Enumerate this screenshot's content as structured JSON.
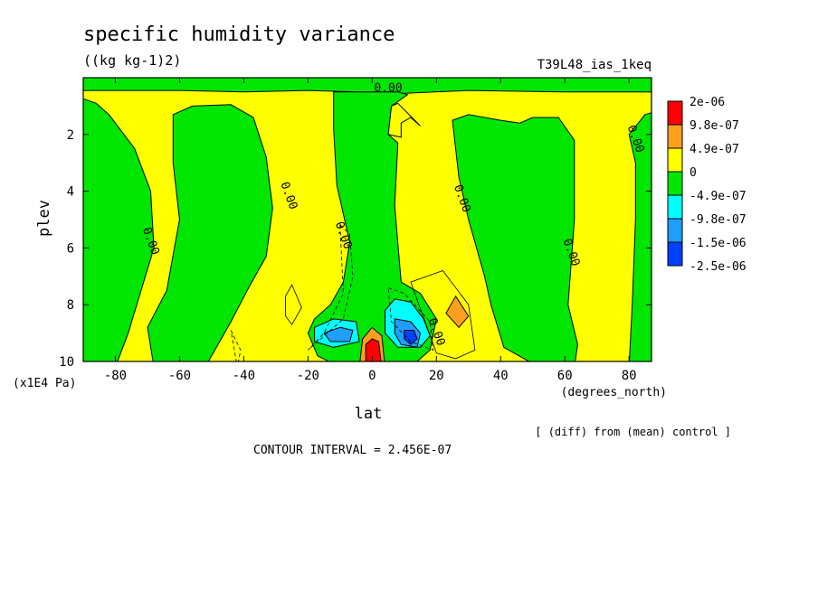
{
  "chart_data": {
    "type": "heatmap",
    "title": "specific humidity variance",
    "units": "((kg kg-1)2)",
    "run_label": "T39L48_ias_1keq",
    "xlabel": "lat",
    "x_units": "(degrees_north)",
    "ylabel": "plev",
    "y_units": "(x1E4 Pa)",
    "note": "[ (diff) from (mean) control ]",
    "contour_interval": "CONTOUR INTERVAL = 2.456E-07",
    "xlim": [
      -90,
      87
    ],
    "ylim": [
      0,
      10
    ],
    "y_reversed": true,
    "x_ticks": [
      -80,
      -60,
      -40,
      -20,
      0,
      20,
      40,
      60,
      80
    ],
    "y_ticks": [
      2,
      4,
      6,
      8,
      10
    ],
    "contour_labels": [
      {
        "x": 5,
        "y": 0.5,
        "text": "0.00"
      },
      {
        "x": -70,
        "y": 5.8,
        "text": "0.00"
      },
      {
        "x": -27,
        "y": 4.2,
        "text": "0.00"
      },
      {
        "x": -10,
        "y": 5.6,
        "text": "0.00"
      },
      {
        "x": 27,
        "y": 4.3,
        "text": "0.00"
      },
      {
        "x": 61,
        "y": 6.2,
        "text": "0.00"
      },
      {
        "x": 81,
        "y": 2.2,
        "text": "0.00"
      },
      {
        "x": 19,
        "y": 9.0,
        "text": "0.00"
      }
    ],
    "legend": {
      "position": "right",
      "labels": [
        "2e-06",
        "9.8e-07",
        "4.9e-07",
        "0",
        "-4.9e-07",
        "-9.8e-07",
        "-1.5e-06",
        "-2.5e-06"
      ],
      "colors": [
        "#ff0000",
        "#ff9f1f",
        "#ffff00",
        "#00e600",
        "#00ffff",
        "#1e9fff",
        "#0040ff"
      ]
    },
    "color_key": {
      "red": "#ff0000",
      "orange": "#ff9f1f",
      "yellow": "#ffff00",
      "green": "#00e600",
      "cyan": "#00ffff",
      "lightblue": "#1e9fff",
      "blue": "#0040ff"
    },
    "regions": [
      {
        "band": "yellow",
        "area": "background / positive small anomalies"
      },
      {
        "band": "green",
        "area": "southern high latitudes -90..-70, plev 0.5..10"
      },
      {
        "band": "green",
        "area": "southern midlatitude column -62..-35, plev 1.2..10"
      },
      {
        "band": "green",
        "area": "tropical column -12..10, plev 0.5..7"
      },
      {
        "band": "green",
        "area": "northern column 25..65, plev 1.3..10"
      },
      {
        "band": "green",
        "area": "northern polar column 80..87"
      },
      {
        "band": "cyan",
        "area": "-18..-5, plev 8.7..9.5"
      },
      {
        "band": "cyan",
        "area": "5..18, plev 7.7..9.4"
      },
      {
        "band": "lightblue",
        "area": "8..16, plev 8.5..9.6"
      },
      {
        "band": "blue",
        "area": "10..14, plev 8.9..9.3"
      },
      {
        "band": "orange",
        "area": "23..30, plev 7.7..8.8"
      },
      {
        "band": "orange",
        "area": "-4..4, plev 9.0..10"
      },
      {
        "band": "red",
        "area": "-2..3, plev 9.3..10"
      }
    ]
  }
}
